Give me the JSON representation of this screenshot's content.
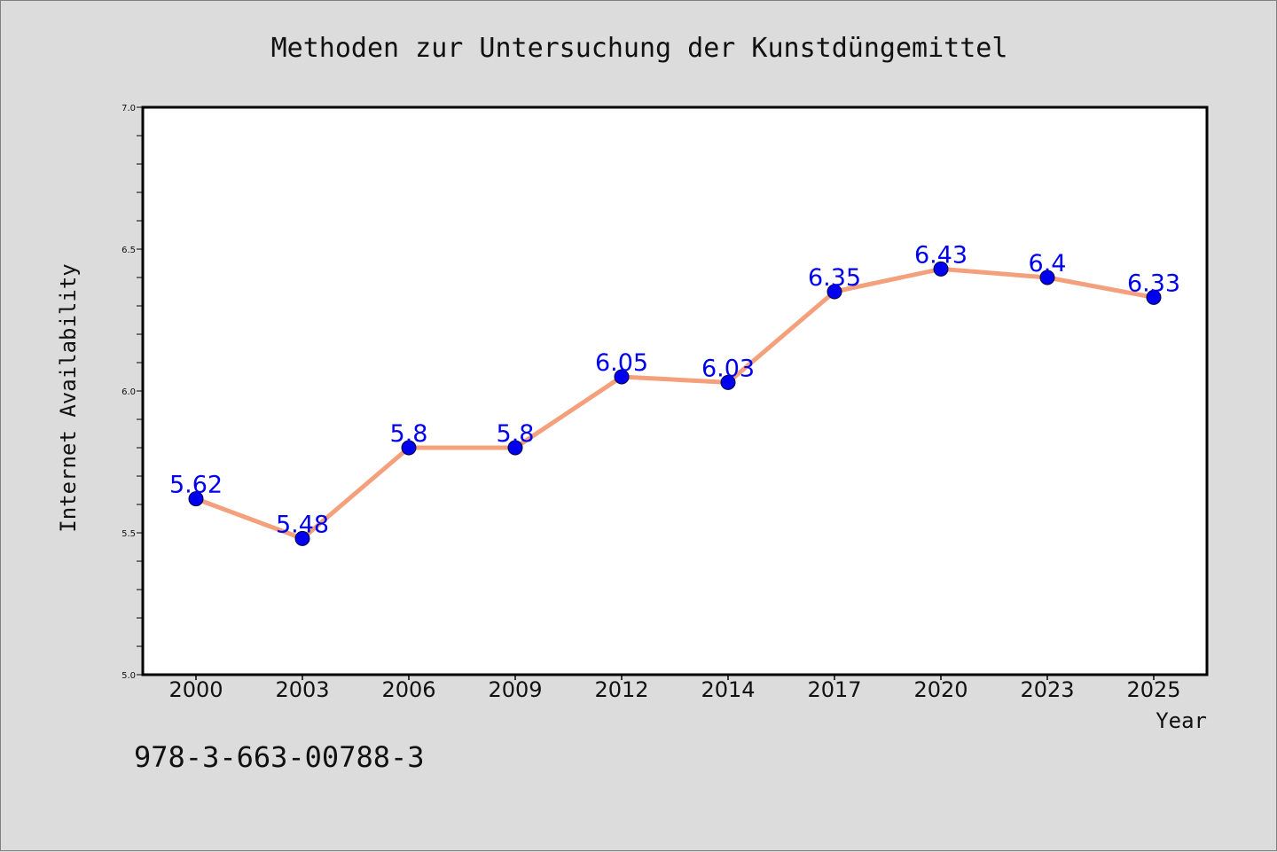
{
  "chart_data": {
    "type": "line",
    "title": "Methoden zur Untersuchung der Kunstdüngemittel",
    "xlabel": "Year",
    "ylabel": "Internet Availability",
    "categories": [
      "2000",
      "2003",
      "2006",
      "2009",
      "2012",
      "2014",
      "2017",
      "2020",
      "2023",
      "2025"
    ],
    "series": [
      {
        "values": [
          5.62,
          5.48,
          5.8,
          5.8,
          6.05,
          6.03,
          6.35,
          6.43,
          6.4,
          6.33
        ],
        "labels": [
          "5.62",
          "5.48",
          "5.8",
          "5.8",
          "6.05",
          "6.03",
          "6.35",
          "6.43",
          "6.4",
          "6.33"
        ],
        "line_color": "#f4a07c",
        "marker_color": "#0000ee",
        "label_color": "#0000ee"
      }
    ],
    "ylim": [
      5.0,
      7.0
    ],
    "yticks": [
      "5.0",
      "5.5",
      "6.0",
      "6.5",
      "7.0"
    ],
    "grid": false,
    "legend": "none"
  },
  "footer": {
    "code": "978-3-663-00788-3"
  }
}
